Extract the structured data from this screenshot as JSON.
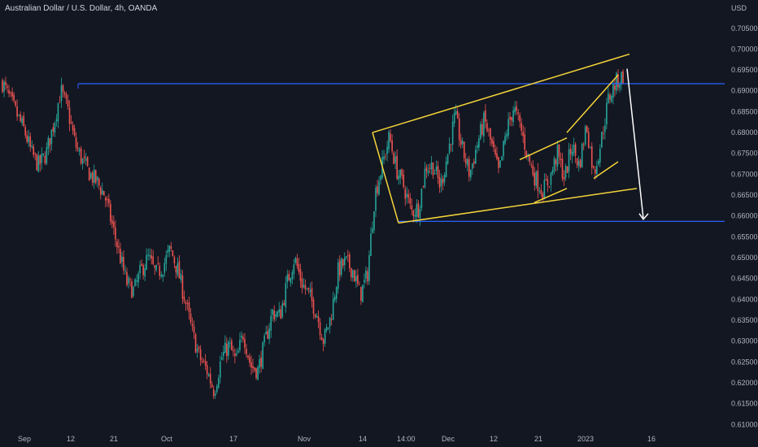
{
  "chart_data": {
    "type": "candlestick",
    "title": "Australian Dollar / U.S. Dollar, 4h, OANDA",
    "y_unit": "USD",
    "ylim": [
      0.6085,
      0.7108
    ],
    "yticks": [
      "0.70500",
      "0.70000",
      "0.69500",
      "0.69000",
      "0.68500",
      "0.68000",
      "0.67500",
      "0.67000",
      "0.66500",
      "0.66000",
      "0.65500",
      "0.65000",
      "0.64500",
      "0.64000",
      "0.63500",
      "0.63000",
      "0.62500",
      "0.62000",
      "0.61500",
      "0.61000"
    ],
    "xticks": [
      "Sep",
      "12",
      "21",
      "Oct",
      "17",
      "Nov",
      "14",
      "14:00",
      "Dec",
      "12",
      "21",
      "2023",
      "16"
    ],
    "colors": {
      "background": "#131722",
      "up": "#26a69a",
      "down": "#ef5350",
      "resistance": "#2962ff",
      "trendlines": "#f5d43a",
      "arrow": "#ffffff"
    },
    "price_path": [
      [
        0.692,
        0.6955
      ],
      [
        0.688,
        0.69
      ],
      [
        0.6842,
        0.6862
      ],
      [
        0.6805,
        0.6822
      ],
      [
        0.675,
        0.676
      ],
      [
        0.672,
        0.6735
      ],
      [
        0.675,
        0.6765
      ],
      [
        0.682,
        0.6835
      ],
      [
        0.69,
        0.6905
      ],
      [
        0.685,
        0.6838
      ],
      [
        0.677,
        0.679
      ],
      [
        0.673,
        0.6745
      ],
      [
        0.67,
        0.6718
      ],
      [
        0.668,
        0.6692
      ],
      [
        0.665,
        0.666
      ],
      [
        0.658,
        0.6595
      ],
      [
        0.651,
        0.6525
      ],
      [
        0.644,
        0.6455
      ],
      [
        0.642,
        0.644
      ],
      [
        0.647,
        0.6485
      ],
      [
        0.65,
        0.6515
      ],
      [
        0.646,
        0.647
      ],
      [
        0.648,
        0.6495
      ],
      [
        0.652,
        0.654
      ],
      [
        0.647,
        0.646
      ],
      [
        0.64,
        0.641
      ],
      [
        0.632,
        0.633
      ],
      [
        0.626,
        0.628
      ],
      [
        0.623,
        0.624
      ],
      [
        0.618,
        0.62
      ],
      [
        0.626,
        0.627
      ],
      [
        0.629,
        0.63
      ],
      [
        0.625,
        0.626
      ],
      [
        0.632,
        0.631
      ],
      [
        0.624,
        0.625
      ],
      [
        0.623,
        0.6245
      ],
      [
        0.63,
        0.629
      ],
      [
        0.637,
        0.636
      ],
      [
        0.636,
        0.6375
      ],
      [
        0.644,
        0.643
      ],
      [
        0.65,
        0.649
      ],
      [
        0.644,
        0.645
      ],
      [
        0.641,
        0.642
      ],
      [
        0.637,
        0.638
      ],
      [
        0.63,
        0.629
      ],
      [
        0.636,
        0.637
      ],
      [
        0.647,
        0.646
      ],
      [
        0.649,
        0.648
      ],
      [
        0.647,
        0.645
      ],
      [
        0.641,
        0.64
      ],
      [
        0.646,
        0.655
      ],
      [
        0.665,
        0.668
      ],
      [
        0.672,
        0.674
      ],
      [
        0.679,
        0.677
      ],
      [
        0.671,
        0.669
      ],
      [
        0.667,
        0.665
      ],
      [
        0.661,
        0.66
      ],
      [
        0.662,
        0.665
      ],
      [
        0.672,
        0.676
      ],
      [
        0.672,
        0.671
      ],
      [
        0.667,
        0.67
      ],
      [
        0.675,
        0.678
      ],
      [
        0.684,
        0.683
      ],
      [
        0.676,
        0.674
      ],
      [
        0.67,
        0.672
      ],
      [
        0.677,
        0.679
      ],
      [
        0.683,
        0.681
      ],
      [
        0.677,
        0.674
      ],
      [
        0.67,
        0.672
      ],
      [
        0.68,
        0.682
      ],
      [
        0.686,
        0.688
      ],
      [
        0.681,
        0.679
      ],
      [
        0.674,
        0.672
      ],
      [
        0.669,
        0.668
      ],
      [
        0.666,
        0.664
      ],
      [
        0.669,
        0.671
      ],
      [
        0.675,
        0.674
      ],
      [
        0.669,
        0.671
      ],
      [
        0.677,
        0.678
      ],
      [
        0.672,
        0.673
      ],
      [
        0.682,
        0.68
      ],
      [
        0.67,
        0.669
      ],
      [
        0.678,
        0.683
      ],
      [
        0.688,
        0.69
      ],
      [
        0.692,
        0.694
      ],
      [
        0.6935,
        0.6925
      ]
    ],
    "resistance_level": 0.6917,
    "support_level": 0.6587,
    "projected_target": 0.659
  }
}
